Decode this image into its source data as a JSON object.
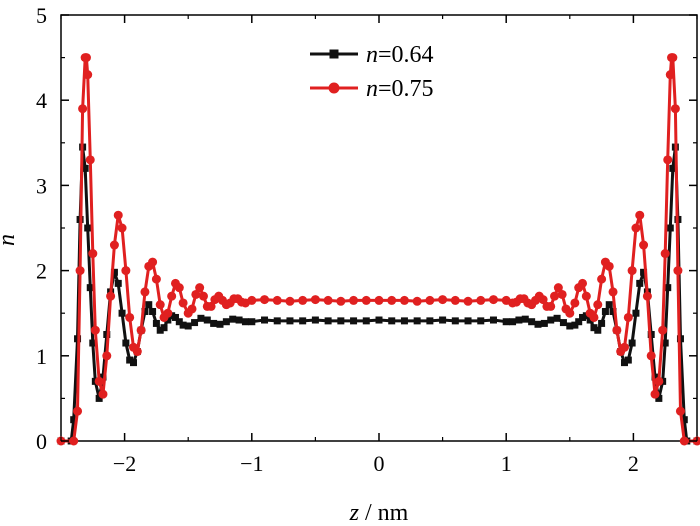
{
  "chart_data": {
    "type": "line",
    "title": "",
    "xlabel_var": "z",
    "xlabel_unit": " / nm",
    "ylabel": "n",
    "xlim": [
      -2.5,
      2.5
    ],
    "ylim": [
      0,
      5
    ],
    "xticks": [
      -2,
      -1,
      0,
      1,
      2
    ],
    "xtick_labels": [
      "−2",
      "−1",
      "0",
      "1",
      "2"
    ],
    "yticks": [
      0,
      1,
      2,
      3,
      4,
      5
    ],
    "ytick_labels": [
      "0",
      "1",
      "2",
      "3",
      "4",
      "5"
    ],
    "grid": false,
    "legend_position": "top-center",
    "series": [
      {
        "name_var": "n",
        "name_value": "=0.64",
        "color": "#111111",
        "marker": "square",
        "x": [
          -2.5,
          -2.42,
          -2.4,
          -2.37,
          -2.35,
          -2.33,
          -2.31,
          -2.29,
          -2.27,
          -2.25,
          -2.23,
          -2.2,
          -2.17,
          -2.14,
          -2.11,
          -2.08,
          -2.05,
          -2.02,
          -1.99,
          -1.96,
          -1.93,
          -1.9,
          -1.87,
          -1.84,
          -1.81,
          -1.78,
          -1.75,
          -1.72,
          -1.69,
          -1.66,
          -1.63,
          -1.6,
          -1.57,
          -1.54,
          -1.5,
          -1.45,
          -1.4,
          -1.35,
          -1.3,
          -1.25,
          -1.2,
          -1.15,
          -1.1,
          -1.05,
          -1.0,
          -0.9,
          -0.8,
          -0.7,
          -0.6,
          -0.5,
          -0.4,
          -0.3,
          -0.2,
          -0.1,
          0.0,
          0.1,
          0.2,
          0.3,
          0.4,
          0.5,
          0.6,
          0.7,
          0.8,
          0.9,
          1.0,
          1.05,
          1.1,
          1.15,
          1.2,
          1.25,
          1.3,
          1.35,
          1.4,
          1.45,
          1.5,
          1.54,
          1.57,
          1.6,
          1.63,
          1.66,
          1.69,
          1.72,
          1.75,
          1.78,
          1.81,
          1.84,
          1.87,
          1.9,
          1.93,
          1.96,
          1.99,
          2.02,
          2.05,
          2.08,
          2.11,
          2.14,
          2.17,
          2.2,
          2.23,
          2.25,
          2.27,
          2.29,
          2.31,
          2.33,
          2.35,
          2.37,
          2.4,
          2.42,
          2.5
        ],
        "y": [
          0.0,
          0.0,
          0.25,
          1.2,
          2.6,
          3.45,
          3.2,
          2.5,
          1.8,
          1.15,
          0.7,
          0.5,
          0.75,
          1.25,
          1.75,
          1.98,
          1.85,
          1.5,
          1.15,
          0.95,
          0.92,
          1.05,
          1.3,
          1.52,
          1.6,
          1.52,
          1.38,
          1.3,
          1.33,
          1.42,
          1.47,
          1.45,
          1.4,
          1.36,
          1.35,
          1.39,
          1.44,
          1.42,
          1.38,
          1.37,
          1.4,
          1.43,
          1.42,
          1.4,
          1.4,
          1.42,
          1.41,
          1.41,
          1.41,
          1.42,
          1.41,
          1.41,
          1.41,
          1.41,
          1.42,
          1.41,
          1.41,
          1.41,
          1.41,
          1.42,
          1.41,
          1.41,
          1.41,
          1.42,
          1.4,
          1.4,
          1.42,
          1.43,
          1.4,
          1.37,
          1.38,
          1.42,
          1.44,
          1.39,
          1.35,
          1.36,
          1.4,
          1.45,
          1.47,
          1.42,
          1.33,
          1.3,
          1.38,
          1.52,
          1.6,
          1.52,
          1.3,
          1.05,
          0.92,
          0.95,
          1.15,
          1.5,
          1.85,
          1.98,
          1.75,
          1.25,
          0.75,
          0.5,
          0.7,
          1.15,
          1.8,
          2.5,
          3.2,
          3.45,
          2.6,
          1.2,
          0.25,
          0.0,
          0.0
        ]
      },
      {
        "name_var": "n",
        "name_value": "=0.75",
        "color": "#e02020",
        "marker": "circle",
        "x": [
          -2.5,
          -2.4,
          -2.37,
          -2.35,
          -2.33,
          -2.31,
          -2.3,
          -2.29,
          -2.27,
          -2.25,
          -2.23,
          -2.2,
          -2.17,
          -2.14,
          -2.11,
          -2.08,
          -2.05,
          -2.02,
          -1.99,
          -1.96,
          -1.93,
          -1.9,
          -1.87,
          -1.84,
          -1.81,
          -1.78,
          -1.75,
          -1.72,
          -1.69,
          -1.66,
          -1.63,
          -1.6,
          -1.57,
          -1.54,
          -1.5,
          -1.47,
          -1.44,
          -1.41,
          -1.38,
          -1.35,
          -1.32,
          -1.29,
          -1.26,
          -1.23,
          -1.2,
          -1.17,
          -1.14,
          -1.11,
          -1.08,
          -1.05,
          -1.0,
          -0.9,
          -0.8,
          -0.7,
          -0.6,
          -0.5,
          -0.4,
          -0.3,
          -0.2,
          -0.1,
          0.0,
          0.1,
          0.2,
          0.3,
          0.4,
          0.5,
          0.6,
          0.7,
          0.8,
          0.9,
          1.0,
          1.05,
          1.08,
          1.11,
          1.14,
          1.17,
          1.2,
          1.23,
          1.26,
          1.29,
          1.32,
          1.35,
          1.38,
          1.41,
          1.44,
          1.47,
          1.5,
          1.54,
          1.57,
          1.6,
          1.63,
          1.66,
          1.69,
          1.72,
          1.75,
          1.78,
          1.81,
          1.84,
          1.87,
          1.9,
          1.93,
          1.96,
          1.99,
          2.02,
          2.05,
          2.08,
          2.11,
          2.14,
          2.17,
          2.2,
          2.23,
          2.25,
          2.27,
          2.29,
          2.3,
          2.31,
          2.33,
          2.35,
          2.37,
          2.4,
          2.5
        ],
        "y": [
          0.0,
          0.0,
          0.35,
          2.0,
          3.9,
          4.5,
          4.5,
          4.3,
          3.3,
          2.2,
          1.3,
          0.7,
          0.55,
          1.0,
          1.7,
          2.3,
          2.65,
          2.5,
          2.0,
          1.45,
          1.1,
          1.05,
          1.3,
          1.75,
          2.05,
          2.1,
          1.9,
          1.6,
          1.45,
          1.5,
          1.7,
          1.85,
          1.8,
          1.62,
          1.5,
          1.55,
          1.72,
          1.8,
          1.7,
          1.58,
          1.58,
          1.66,
          1.7,
          1.65,
          1.6,
          1.62,
          1.67,
          1.67,
          1.63,
          1.62,
          1.65,
          1.66,
          1.65,
          1.64,
          1.65,
          1.66,
          1.65,
          1.64,
          1.65,
          1.65,
          1.65,
          1.65,
          1.65,
          1.64,
          1.65,
          1.66,
          1.65,
          1.64,
          1.65,
          1.66,
          1.65,
          1.62,
          1.63,
          1.67,
          1.67,
          1.62,
          1.6,
          1.65,
          1.7,
          1.66,
          1.58,
          1.58,
          1.7,
          1.8,
          1.72,
          1.55,
          1.5,
          1.62,
          1.8,
          1.85,
          1.7,
          1.5,
          1.45,
          1.6,
          1.9,
          2.1,
          2.05,
          1.75,
          1.3,
          1.05,
          1.1,
          1.45,
          2.0,
          2.5,
          2.65,
          2.3,
          1.7,
          1.0,
          0.55,
          0.7,
          1.3,
          2.2,
          3.3,
          4.3,
          4.5,
          4.5,
          3.9,
          2.0,
          0.35,
          0.0,
          0.0
        ]
      }
    ]
  }
}
